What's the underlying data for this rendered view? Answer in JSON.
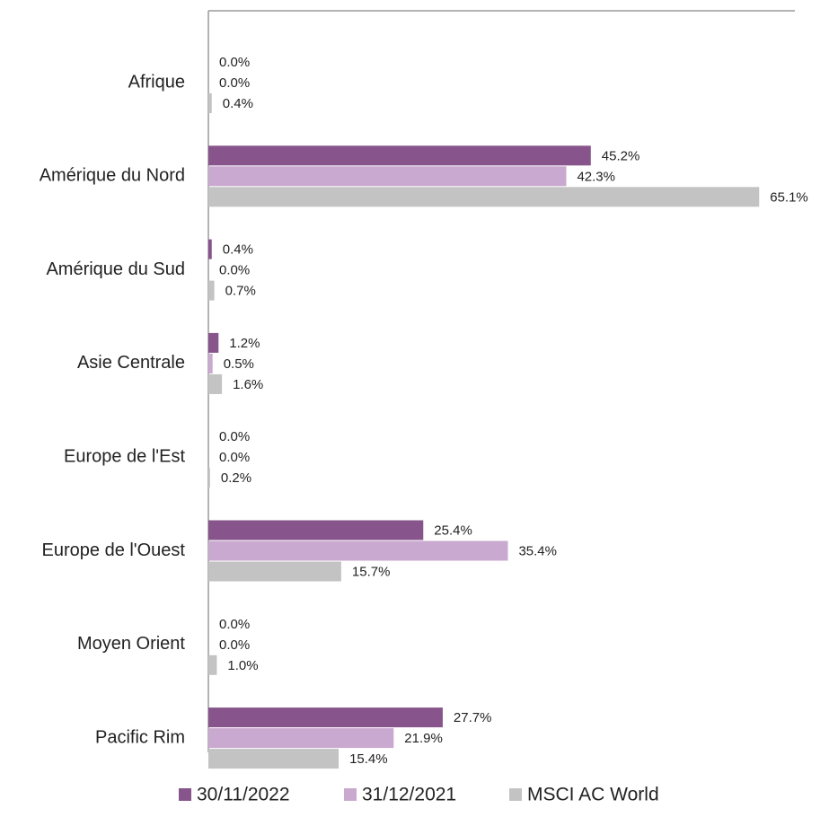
{
  "chart_data": {
    "type": "bar",
    "orientation": "horizontal",
    "categories": [
      "Afrique",
      "Amérique du Nord",
      "Amérique du Sud",
      "Asie Centrale",
      "Europe de l'Est",
      "Europe de l'Ouest",
      "Moyen Orient",
      "Pacific Rim"
    ],
    "series": [
      {
        "name": "30/11/2022",
        "color": "#87548b",
        "values": [
          0.0,
          45.2,
          0.4,
          1.2,
          0.0,
          25.4,
          0.0,
          27.7
        ],
        "labels": [
          "0.0%",
          "45.2%",
          "0.4%",
          "1.2%",
          "0.0%",
          "25.4%",
          "0.0%",
          "27.7%"
        ]
      },
      {
        "name": "31/12/2021",
        "color": "#c9a9cf",
        "values": [
          0.0,
          42.3,
          0.0,
          0.5,
          0.0,
          35.4,
          0.0,
          21.9
        ],
        "labels": [
          "0.0%",
          "42.3%",
          "0.0%",
          "0.5%",
          "0.0%",
          "35.4%",
          "0.0%",
          "21.9%"
        ]
      },
      {
        "name": "MSCI AC World",
        "color": "#c3c3c3",
        "values": [
          0.4,
          65.1,
          0.7,
          1.6,
          0.2,
          15.7,
          1.0,
          15.4
        ],
        "labels": [
          "0.4%",
          "65.1%",
          "0.7%",
          "1.6%",
          "0.2%",
          "15.7%",
          "1.0%",
          "15.4%"
        ]
      }
    ],
    "xlim": [
      0,
      68
    ],
    "grid": false,
    "legend_position": "bottom",
    "title": "",
    "xlabel": "",
    "ylabel": ""
  }
}
